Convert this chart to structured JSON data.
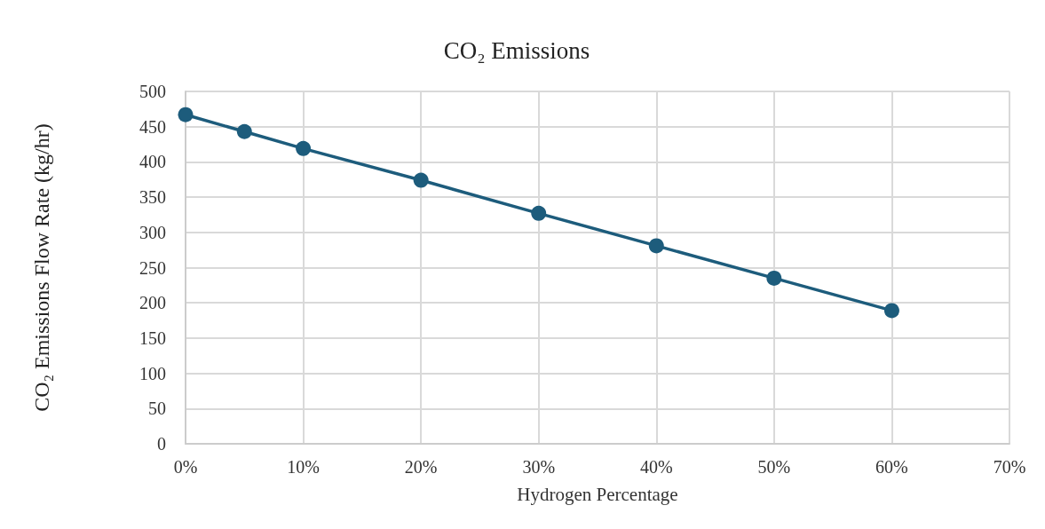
{
  "chart_data": {
    "type": "line",
    "title": "CO₂ Emissions",
    "xlabel": "Hydrogen Percentage",
    "ylabel": "CO₂ Emissions Flow Rate (kg/hr)",
    "x": [
      0,
      5,
      10,
      20,
      30,
      40,
      50,
      60
    ],
    "series": [
      {
        "color": "#1d5c7c",
        "values": [
          467,
          443,
          419,
          374,
          327,
          281,
          235,
          189
        ]
      }
    ],
    "xlim": [
      0,
      70
    ],
    "xticks": [
      {
        "value": 0,
        "label": "0%"
      },
      {
        "value": 10,
        "label": "10%"
      },
      {
        "value": 20,
        "label": "20%"
      },
      {
        "value": 30,
        "label": "30%"
      },
      {
        "value": 40,
        "label": "40%"
      },
      {
        "value": 50,
        "label": "50%"
      },
      {
        "value": 60,
        "label": "60%"
      },
      {
        "value": 70,
        "label": "70%"
      }
    ],
    "ylim": [
      0,
      500
    ],
    "yticks": [
      0,
      50,
      100,
      150,
      200,
      250,
      300,
      350,
      400,
      450,
      500
    ],
    "grid": true,
    "marker": "circle",
    "line_style": "solid"
  }
}
